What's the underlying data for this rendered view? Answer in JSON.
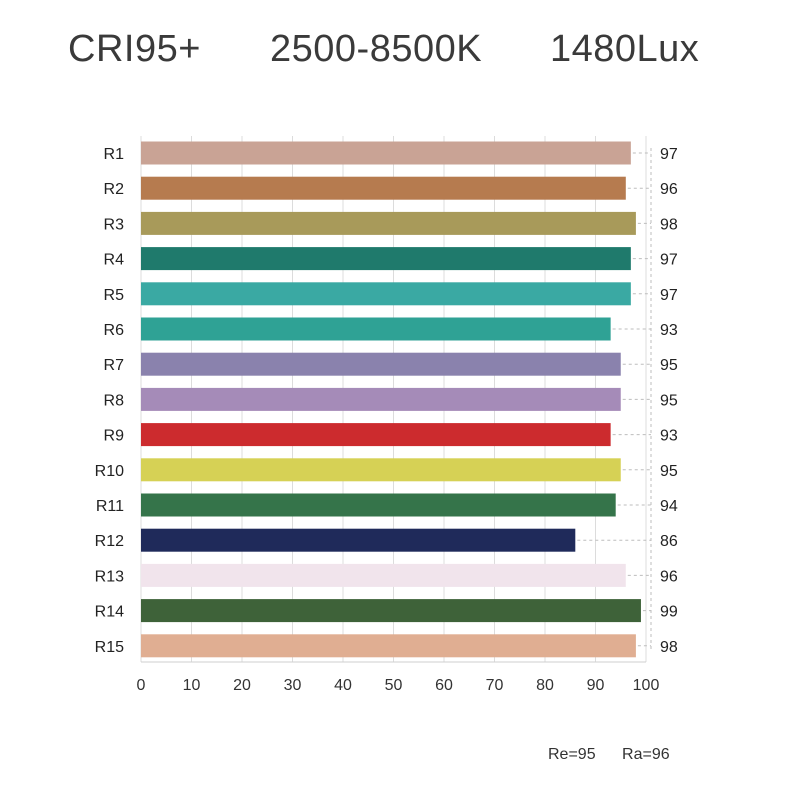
{
  "header": {
    "cri": "CRI95+",
    "cct": "2500-8500K",
    "lux": "1480Lux"
  },
  "footer": {
    "re": "Re=95",
    "ra": "Ra=96"
  },
  "chart_data": {
    "type": "bar",
    "orientation": "horizontal",
    "title": "CRI95+   2500-8500K   1480Lux",
    "categories": [
      "R1",
      "R2",
      "R3",
      "R4",
      "R5",
      "R6",
      "R7",
      "R8",
      "R9",
      "R10",
      "R11",
      "R12",
      "R13",
      "R14",
      "R15"
    ],
    "values": [
      97,
      96,
      98,
      97,
      97,
      93,
      95,
      95,
      93,
      95,
      94,
      86,
      96,
      99,
      98
    ],
    "colors": [
      "#c9a395",
      "#b67b4f",
      "#a89a5a",
      "#1f7a6c",
      "#3aa9a3",
      "#2fa295",
      "#8a82ad",
      "#a58bb8",
      "#cc2b2e",
      "#d6d155",
      "#35744a",
      "#1f2a5a",
      "#f1e4ec",
      "#3e6239",
      "#e0ae92"
    ],
    "xlim": [
      0,
      100
    ],
    "xticks": [
      0,
      10,
      20,
      30,
      40,
      50,
      60,
      70,
      80,
      90,
      100
    ],
    "xlabel": "",
    "ylabel": "",
    "grid": "vertical"
  }
}
